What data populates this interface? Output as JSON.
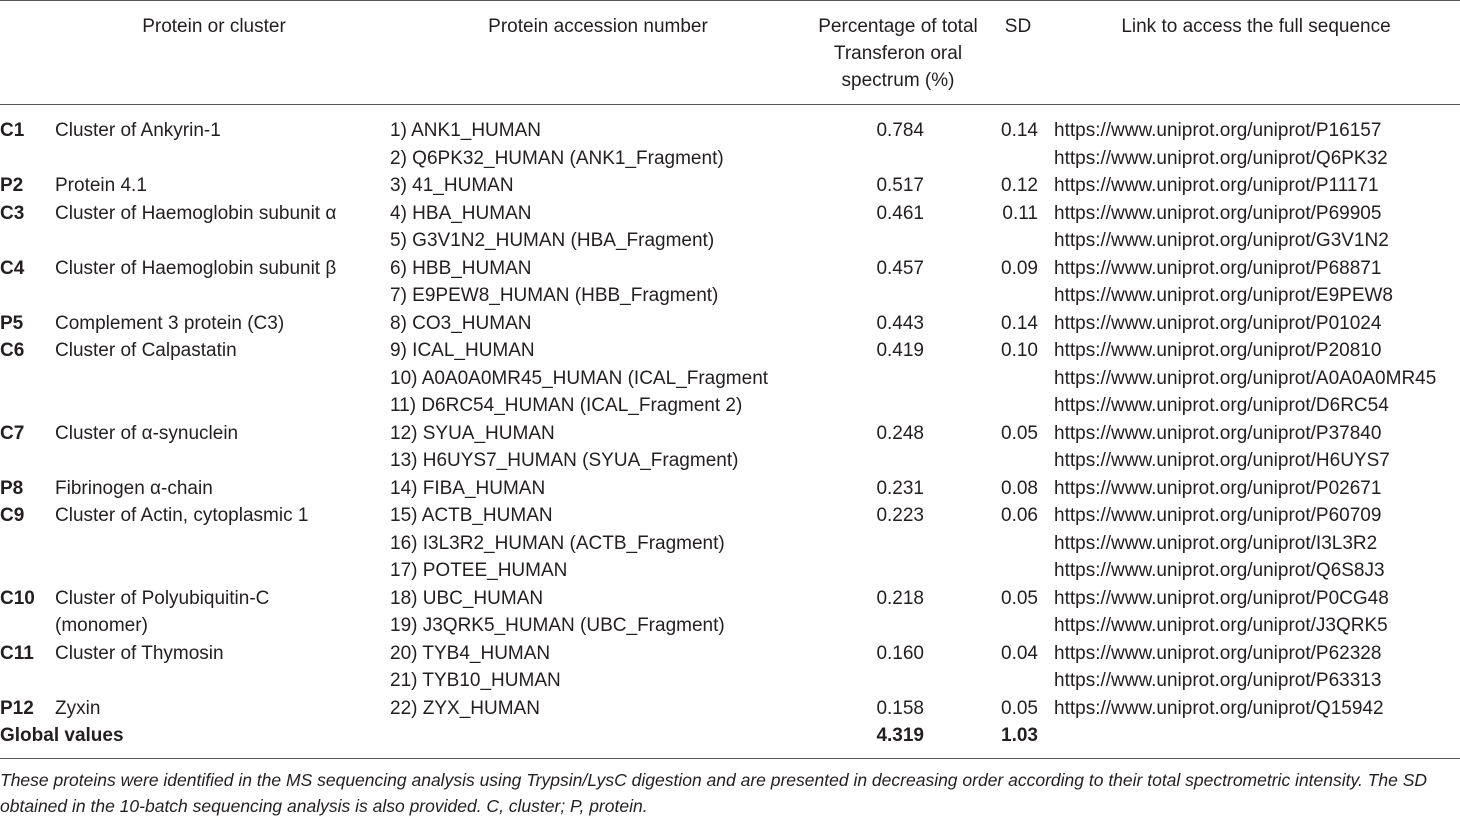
{
  "headers": {
    "protein": "Protein or cluster",
    "accession": "Protein accession number",
    "percentage": "Percentage of total Transferon oral spectrum (%)",
    "sd": "SD",
    "link": "Link to access the full sequence"
  },
  "rows": [
    {
      "code": "C1",
      "name": [
        "Cluster of Ankyrin-1"
      ],
      "accessions": [
        "1) ANK1_HUMAN",
        "2) Q6PK32_HUMAN (ANK1_Fragment)"
      ],
      "percentage": "0.784",
      "sd": "0.14",
      "links": [
        "https://www.uniprot.org/uniprot/P16157",
        "https://www.uniprot.org/uniprot/Q6PK32"
      ]
    },
    {
      "code": "P2",
      "name": [
        "Protein 4.1"
      ],
      "accessions": [
        "3) 41_HUMAN"
      ],
      "percentage": "0.517",
      "sd": "0.12",
      "links": [
        "https://www.uniprot.org/uniprot/P11171"
      ]
    },
    {
      "code": "C3",
      "name": [
        "Cluster of Haemoglobin subunit α"
      ],
      "accessions": [
        "4) HBA_HUMAN",
        "5) G3V1N2_HUMAN (HBA_Fragment)"
      ],
      "percentage": "0.461",
      "sd": "0.11",
      "links": [
        "https://www.uniprot.org/uniprot/P69905",
        "https://www.uniprot.org/uniprot/G3V1N2"
      ]
    },
    {
      "code": "C4",
      "name": [
        "Cluster of Haemoglobin subunit β"
      ],
      "accessions": [
        "6) HBB_HUMAN",
        "7) E9PEW8_HUMAN (HBB_Fragment)"
      ],
      "percentage": "0.457",
      "sd": "0.09",
      "links": [
        "https://www.uniprot.org/uniprot/P68871",
        "https://www.uniprot.org/uniprot/E9PEW8"
      ]
    },
    {
      "code": "P5",
      "name": [
        "Complement 3 protein (C3)"
      ],
      "accessions": [
        "8) CO3_HUMAN"
      ],
      "percentage": "0.443",
      "sd": "0.14",
      "links": [
        "https://www.uniprot.org/uniprot/P01024"
      ]
    },
    {
      "code": "C6",
      "name": [
        "Cluster of Calpastatin"
      ],
      "accessions": [
        "9) ICAL_HUMAN",
        "10) A0A0A0MR45_HUMAN (ICAL_Fragment",
        "11) D6RC54_HUMAN (ICAL_Fragment 2)"
      ],
      "percentage": "0.419",
      "sd": "0.10",
      "links": [
        "https://www.uniprot.org/uniprot/P20810",
        "https://www.uniprot.org/uniprot/A0A0A0MR45",
        "https://www.uniprot.org/uniprot/D6RC54"
      ]
    },
    {
      "code": "C7",
      "name": [
        "Cluster of α-synuclein"
      ],
      "accessions": [
        "12) SYUA_HUMAN",
        "13) H6UYS7_HUMAN (SYUA_Fragment)"
      ],
      "percentage": "0.248",
      "sd": "0.05",
      "links": [
        "https://www.uniprot.org/uniprot/P37840",
        "https://www.uniprot.org/uniprot/H6UYS7"
      ]
    },
    {
      "code": "P8",
      "name": [
        "Fibrinogen α-chain"
      ],
      "accessions": [
        "14) FIBA_HUMAN"
      ],
      "percentage": "0.231",
      "sd": "0.08",
      "links": [
        "https://www.uniprot.org/uniprot/P02671"
      ]
    },
    {
      "code": "C9",
      "name": [
        "Cluster of Actin, cytoplasmic 1"
      ],
      "accessions": [
        "15) ACTB_HUMAN",
        "16) I3L3R2_HUMAN (ACTB_Fragment)",
        "17) POTEE_HUMAN"
      ],
      "percentage": "0.223",
      "sd": "0.06",
      "links": [
        "https://www.uniprot.org/uniprot/P60709",
        "https://www.uniprot.org/uniprot/I3L3R2",
        "https://www.uniprot.org/uniprot/Q6S8J3"
      ]
    },
    {
      "code": "C10",
      "name": [
        "Cluster of Polyubiquitin-C",
        "(monomer)"
      ],
      "accessions": [
        "18) UBC_HUMAN",
        "19) J3QRK5_HUMAN (UBC_Fragment)"
      ],
      "percentage": "0.218",
      "sd": "0.05",
      "links": [
        "https://www.uniprot.org/uniprot/P0CG48",
        "https://www.uniprot.org/uniprot/J3QRK5"
      ]
    },
    {
      "code": "C11",
      "name": [
        "Cluster of Thymosin"
      ],
      "accessions": [
        "20) TYB4_HUMAN",
        "21) TYB10_HUMAN"
      ],
      "percentage": "0.160",
      "sd": "0.04",
      "links": [
        "https://www.uniprot.org/uniprot/P62328",
        "https://www.uniprot.org/uniprot/P63313"
      ]
    },
    {
      "code": "P12",
      "name": [
        "Zyxin"
      ],
      "accessions": [
        "22) ZYX_HUMAN"
      ],
      "percentage": "0.158",
      "sd": "0.05",
      "links": [
        "https://www.uniprot.org/uniprot/Q15942"
      ]
    }
  ],
  "global": {
    "label": "Global values",
    "percentage": "4.319",
    "sd": "1.03"
  },
  "footnote": "These proteins were identified in the MS sequencing analysis using Trypsin/LysC digestion and are presented in decreasing order according to their total spectrometric intensity. The SD obtained in the 10-batch sequencing analysis is also provided. C, cluster; P, protein."
}
